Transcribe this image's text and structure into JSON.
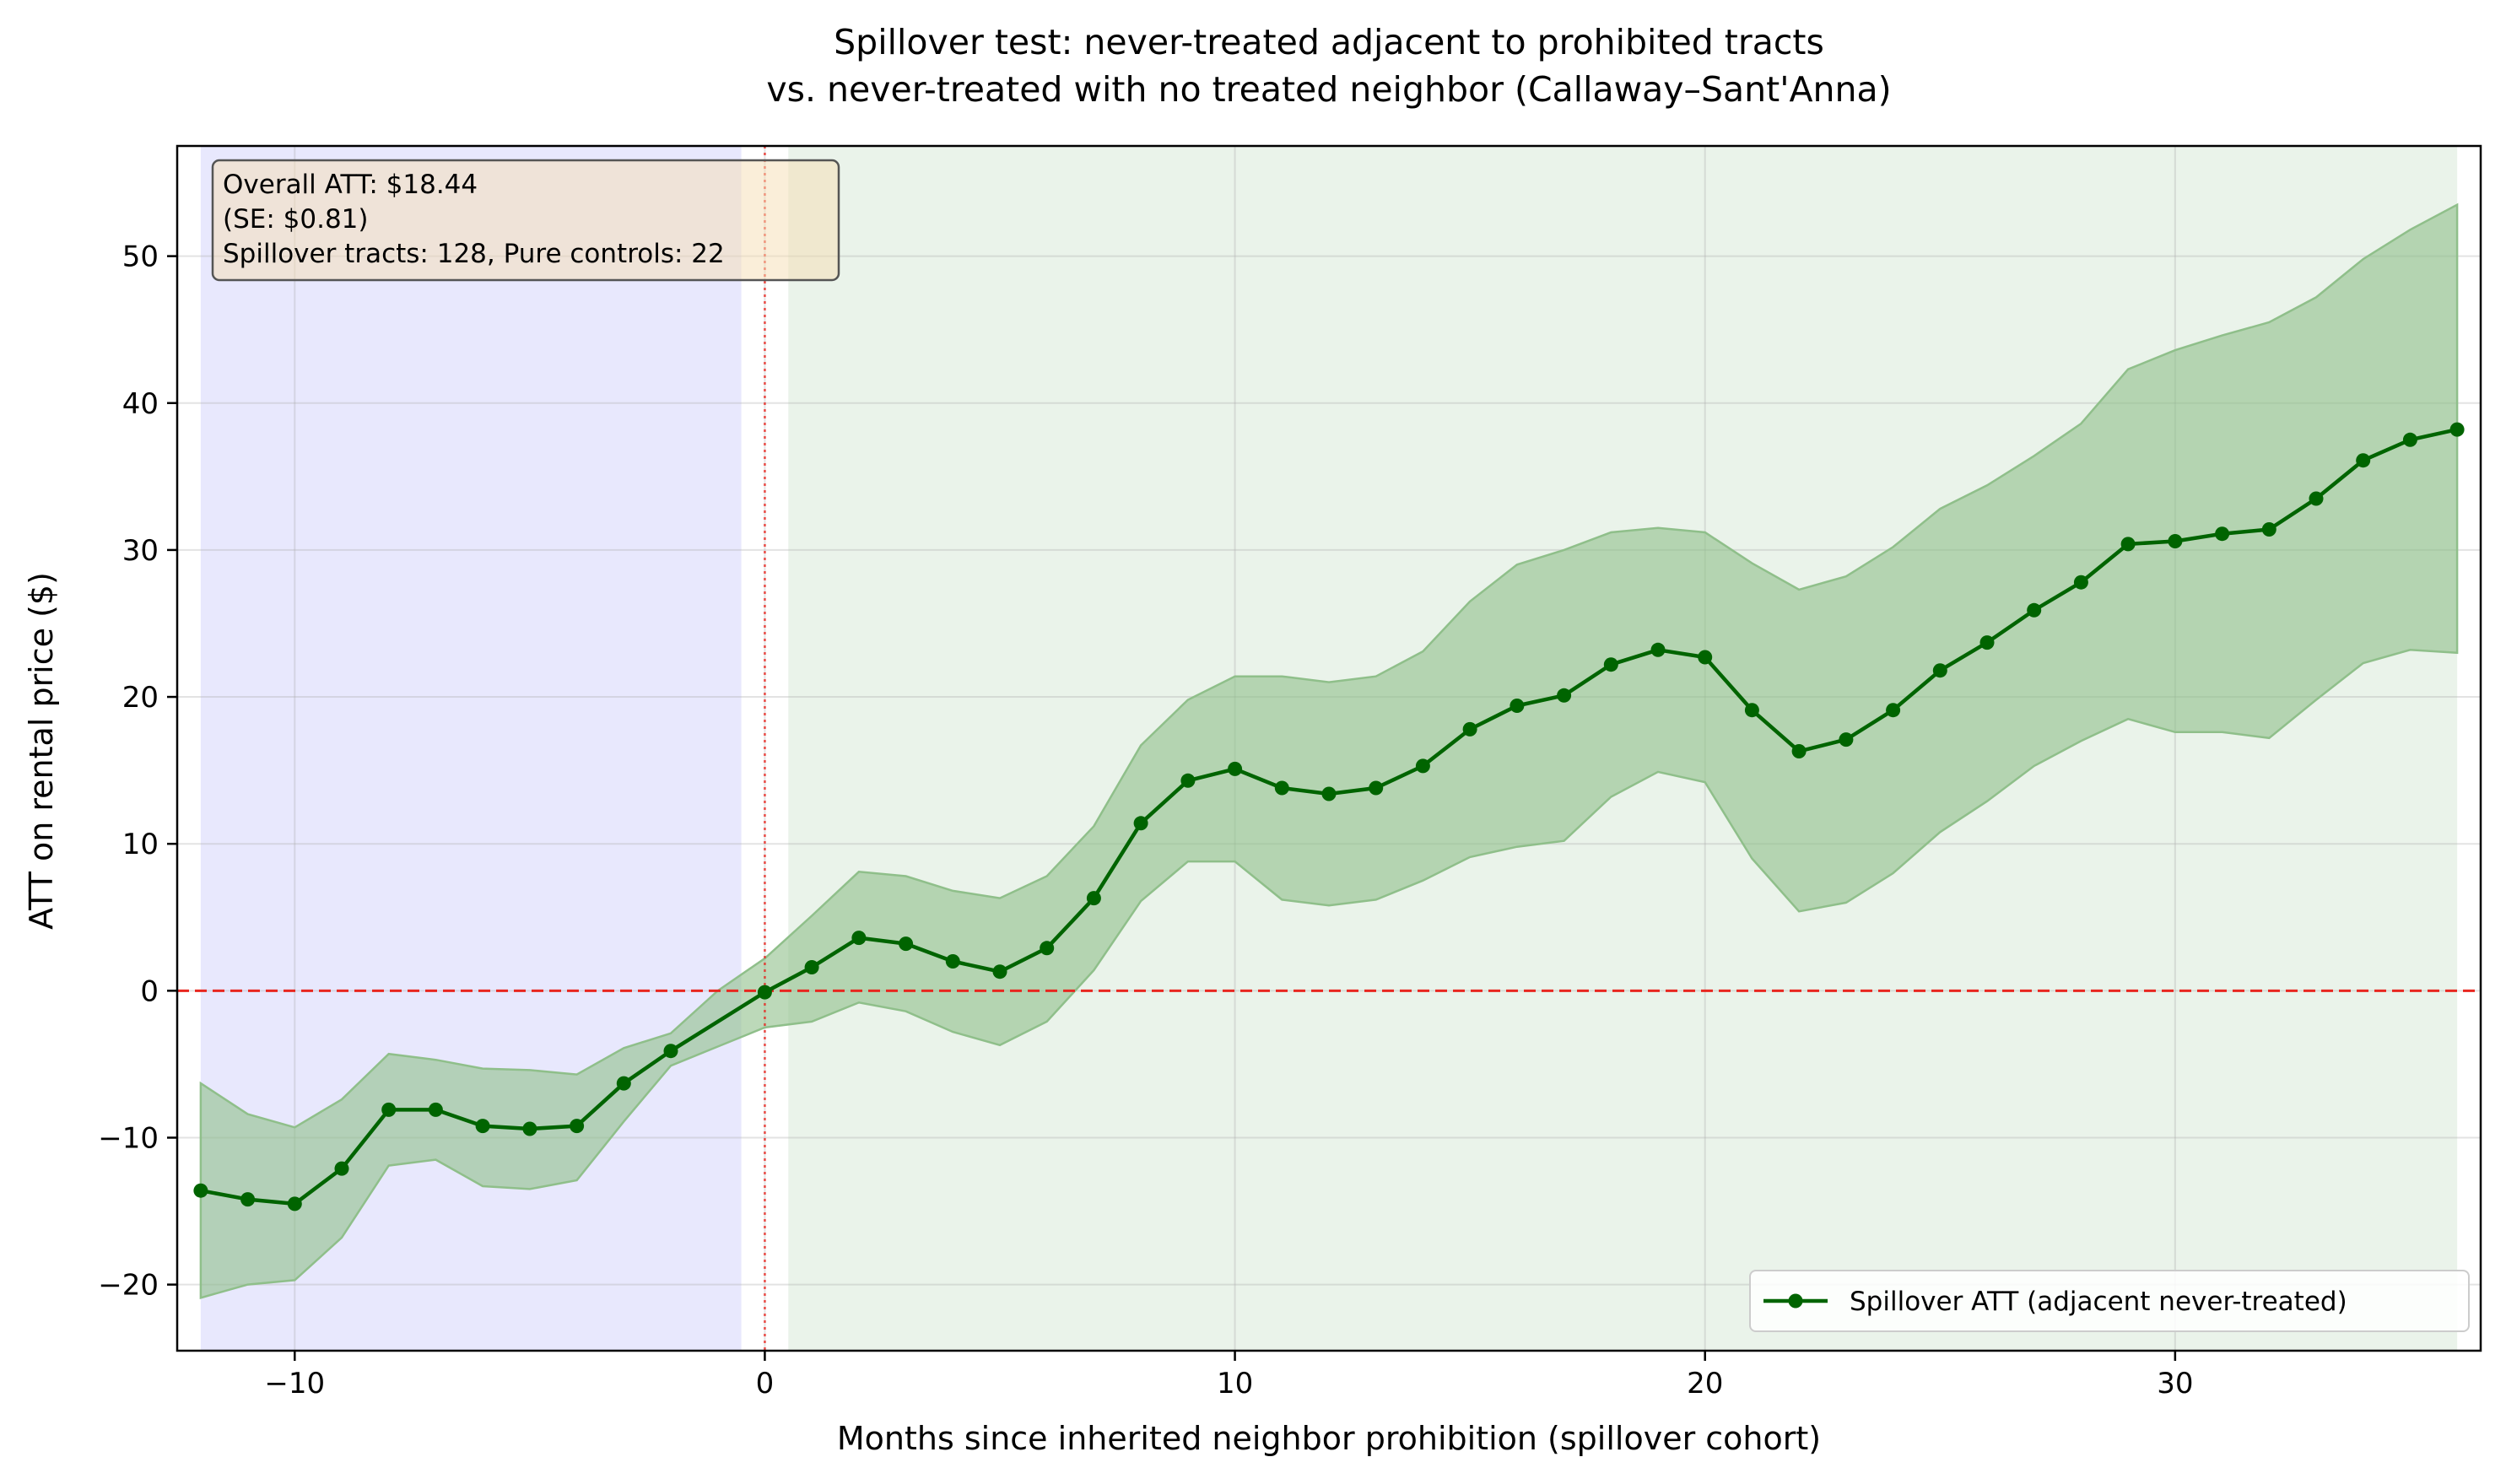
{
  "chart_data": {
    "type": "line",
    "title_line1": "Spillover test: never-treated adjacent to prohibited tracts",
    "title_line2": "vs. never-treated with no treated neighbor (Callaway–Sant'Anna)",
    "xlabel": "Months since inherited neighbor prohibition (spillover cohort)",
    "ylabel": "ATT on rental price ($)",
    "xlim": [
      -12.5,
      36.5
    ],
    "ylim": [
      -24.5,
      57.5
    ],
    "xticks": [
      -10,
      0,
      10,
      20,
      30
    ],
    "xtick_labels": [
      "−10",
      "0",
      "10",
      "20",
      "30"
    ],
    "yticks": [
      -20,
      -10,
      0,
      10,
      20,
      30,
      40,
      50
    ],
    "ytick_labels": [
      "−20",
      "−10",
      "0",
      "10",
      "20",
      "30",
      "40",
      "50"
    ],
    "grid": true,
    "pre_period_shade": {
      "x_range": [
        -12,
        -0.5
      ],
      "color": "#e8e8fd"
    },
    "post_period_shade": {
      "x_range": [
        0.5,
        36
      ],
      "color": "#eaf3ea"
    },
    "reference_lines": {
      "y_zero_color": "#e8261f",
      "x_zero_color": "#e8261f"
    },
    "series": [
      {
        "name": "Spillover ATT (adjacent never-treated)",
        "color": "#006400",
        "band_color": "#8fbf8a",
        "x": [
          -12,
          -11,
          -10,
          -9,
          -8,
          -7,
          -6,
          -5,
          -4,
          -3,
          -2,
          -1,
          0,
          1,
          2,
          3,
          4,
          5,
          6,
          7,
          8,
          9,
          10,
          11,
          12,
          13,
          14,
          15,
          16,
          17,
          18,
          19,
          20,
          21,
          22,
          23,
          24,
          25,
          26,
          27,
          28,
          29,
          30,
          31,
          32,
          33,
          34,
          35,
          36
        ],
        "values": [
          -13.6,
          -14.2,
          -14.5,
          -12.1,
          -8.1,
          -8.1,
          -9.2,
          -9.4,
          -9.2,
          -6.3,
          -4.1,
          null,
          -0.1,
          1.6,
          3.6,
          3.2,
          2.0,
          1.3,
          2.9,
          6.3,
          11.4,
          14.3,
          15.1,
          13.8,
          13.4,
          13.8,
          15.3,
          17.8,
          19.4,
          20.1,
          22.2,
          23.2,
          22.7,
          19.1,
          16.3,
          17.1,
          19.1,
          21.8,
          23.7,
          25.9,
          27.8,
          30.4,
          30.6,
          31.1,
          31.4,
          33.5,
          36.1,
          37.5,
          38.2
        ],
        "lower": [
          -20.9,
          -20.0,
          -19.7,
          -16.8,
          -11.9,
          -11.5,
          -13.3,
          -13.5,
          -12.9,
          -8.9,
          -5.1,
          -3.8,
          -2.5,
          -2.1,
          -0.8,
          -1.4,
          -2.8,
          -3.7,
          -2.1,
          1.4,
          6.1,
          8.8,
          8.8,
          6.2,
          5.8,
          6.2,
          7.5,
          9.1,
          9.8,
          10.2,
          13.2,
          14.9,
          14.2,
          9.0,
          5.4,
          6.0,
          8.0,
          10.8,
          12.9,
          15.3,
          17.0,
          18.5,
          17.6,
          17.6,
          17.2,
          19.8,
          22.3,
          23.2,
          23.0
        ],
        "upper": [
          -6.3,
          -8.4,
          -9.3,
          -7.4,
          -4.3,
          -4.7,
          -5.3,
          -5.4,
          -5.7,
          -3.9,
          -2.9,
          0.0,
          2.2,
          5.1,
          8.1,
          7.8,
          6.8,
          6.3,
          7.8,
          11.2,
          16.7,
          19.8,
          21.4,
          21.4,
          21.0,
          21.4,
          23.1,
          26.5,
          29.0,
          30.0,
          31.2,
          31.5,
          31.2,
          29.1,
          27.3,
          28.2,
          30.2,
          32.8,
          34.4,
          36.4,
          38.6,
          42.3,
          43.6,
          44.6,
          45.5,
          47.2,
          49.8,
          51.8,
          53.5
        ]
      }
    ],
    "annotation": {
      "line1": "Overall ATT: $18.44",
      "line2": "(SE: $0.81)",
      "line3": "Spillover tracts: 128, Pure controls: 22"
    },
    "legend": {
      "entry": "Spillover ATT (adjacent never-treated)",
      "placement": "lower-right"
    }
  }
}
